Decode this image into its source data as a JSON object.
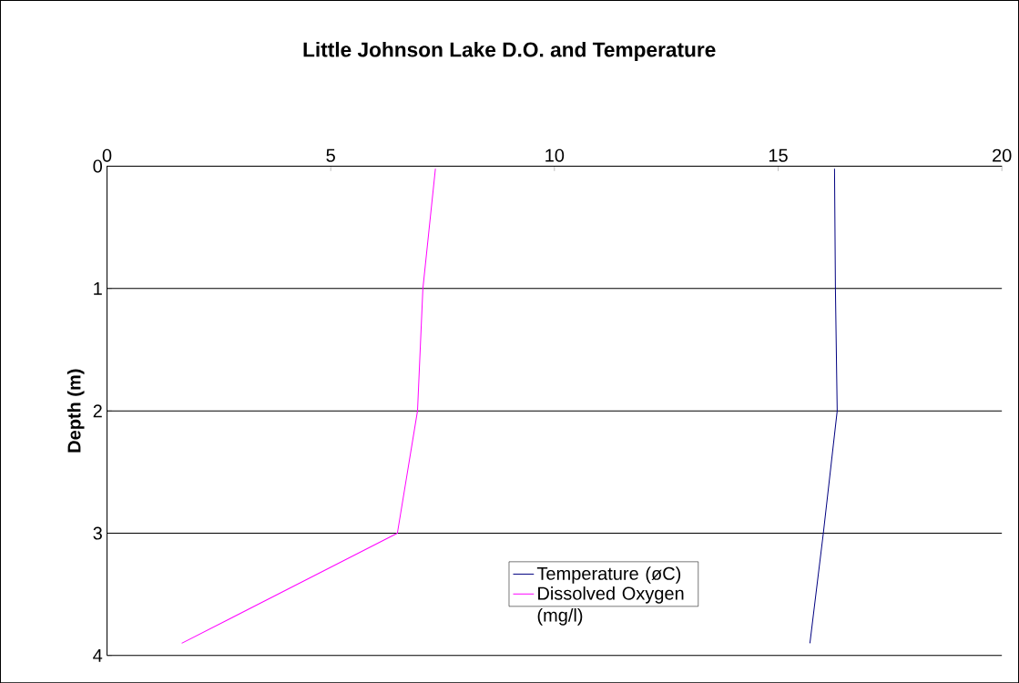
{
  "chart_data": {
    "type": "line",
    "title": "Little Johnson Lake D.O. and Temperature",
    "ylabel": "Depth (m)",
    "xlim": [
      0,
      20
    ],
    "xticks": [
      0,
      5,
      10,
      15,
      20
    ],
    "ylim": [
      4,
      0
    ],
    "yticks": [
      0,
      1,
      2,
      3,
      4
    ],
    "grid": "y",
    "legend": "bottom",
    "marker": "none",
    "line_style": "solid",
    "series": [
      {
        "name": "Temperature (øC)",
        "color": "#000080",
        "x": [
          16.26,
          16.28,
          16.32,
          16.01,
          15.71
        ],
        "values": [
          0.02,
          1,
          2,
          3,
          3.9
        ]
      },
      {
        "name": "Dissolved Oxygen (mg/l)",
        "color": "#ff00ff",
        "x": [
          7.34,
          7.06,
          6.94,
          6.49,
          1.67
        ],
        "values": [
          0.02,
          1,
          2,
          3,
          3.9
        ]
      }
    ]
  }
}
